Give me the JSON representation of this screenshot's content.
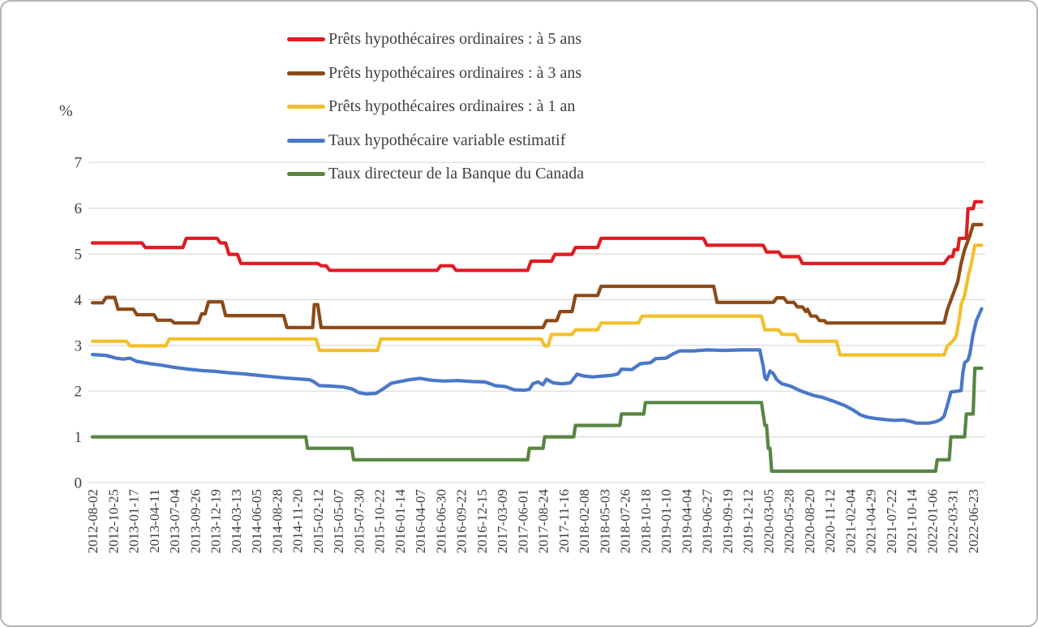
{
  "page": {
    "background": "#ffffff",
    "border_color": "#b6b6b6",
    "text_color": "#404040",
    "grid_color": "#d9d9d9"
  },
  "chart_data": {
    "type": "line",
    "title": "",
    "ylabel": "%",
    "xlabel": "",
    "ylim": [
      0,
      7
    ],
    "yticks": [
      0,
      1,
      2,
      3,
      4,
      5,
      6,
      7
    ],
    "grid": "horizontal",
    "legend_position": "top-center",
    "x_axis": {
      "unit": "weeks since 2012-08-02 (weekly data)",
      "first_tick": "2012-08-02",
      "last_tick": "2022-06-23",
      "tick_spacing_weeks": 12,
      "total_weeks": 521,
      "tick_labels": [
        "2012-08-02",
        "2012-10-25",
        "2013-01-17",
        "2013-04-11",
        "2013-07-04",
        "2013-09-26",
        "2013-12-19",
        "2014-03-13",
        "2014-06-05",
        "2014-08-28",
        "2014-11-20",
        "2015-02-12",
        "2015-05-07",
        "2015-07-30",
        "2015-10-22",
        "2016-01-14",
        "2016-04-07",
        "2016-06-30",
        "2016-09-22",
        "2016-12-15",
        "2017-03-09",
        "2017-06-01",
        "2017-08-24",
        "2017-11-16",
        "2018-02-08",
        "2018-05-03",
        "2018-07-26",
        "2018-10-18",
        "2019-01-10",
        "2019-04-04",
        "2019-06-27",
        "2019-09-19",
        "2019-12-12",
        "2020-03-05",
        "2020-05-28",
        "2020-08-20",
        "2020-11-12",
        "2021-02-04",
        "2021-04-29",
        "2021-07-22",
        "2021-10-14",
        "2022-01-06",
        "2022-03-31",
        "2022-06-23"
      ]
    },
    "series": [
      {
        "name": "Prêts hypothécaires ordinaires : à 5 ans",
        "color": "#e01b22",
        "points": [
          [
            0,
            5.24
          ],
          [
            29,
            5.24
          ],
          [
            31,
            5.14
          ],
          [
            53,
            5.14
          ],
          [
            55,
            5.34
          ],
          [
            73,
            5.34
          ],
          [
            75,
            5.24
          ],
          [
            78,
            5.24
          ],
          [
            80,
            4.99
          ],
          [
            85,
            4.99
          ],
          [
            87,
            4.79
          ],
          [
            132,
            4.79
          ],
          [
            134,
            4.74
          ],
          [
            137,
            4.74
          ],
          [
            139,
            4.64
          ],
          [
            202,
            4.64
          ],
          [
            204,
            4.74
          ],
          [
            211,
            4.74
          ],
          [
            213,
            4.64
          ],
          [
            255,
            4.64
          ],
          [
            257,
            4.84
          ],
          [
            269,
            4.84
          ],
          [
            271,
            4.99
          ],
          [
            281,
            4.99
          ],
          [
            283,
            5.14
          ],
          [
            296,
            5.14
          ],
          [
            298,
            5.34
          ],
          [
            358,
            5.34
          ],
          [
            360,
            5.19
          ],
          [
            393,
            5.19
          ],
          [
            395,
            5.04
          ],
          [
            402,
            5.04
          ],
          [
            404,
            4.94
          ],
          [
            414,
            4.94
          ],
          [
            416,
            4.79
          ],
          [
            499,
            4.79
          ],
          [
            502,
            4.94
          ],
          [
            504,
            4.94
          ],
          [
            505,
            5.09
          ],
          [
            507,
            5.09
          ],
          [
            508,
            5.34
          ],
          [
            512,
            5.34
          ],
          [
            513,
            5.99
          ],
          [
            516,
            5.99
          ],
          [
            517,
            6.14
          ],
          [
            521,
            6.14
          ]
        ]
      },
      {
        "name": "Prêts hypothécaires ordinaires : à 3 ans",
        "color": "#8c4a17",
        "points": [
          [
            0,
            3.93
          ],
          [
            6,
            3.93
          ],
          [
            8,
            4.05
          ],
          [
            13,
            4.05
          ],
          [
            15,
            3.79
          ],
          [
            24,
            3.79
          ],
          [
            26,
            3.67
          ],
          [
            36,
            3.67
          ],
          [
            38,
            3.55
          ],
          [
            46,
            3.55
          ],
          [
            48,
            3.49
          ],
          [
            62,
            3.49
          ],
          [
            64,
            3.69
          ],
          [
            66,
            3.69
          ],
          [
            68,
            3.95
          ],
          [
            76,
            3.95
          ],
          [
            78,
            3.65
          ],
          [
            112,
            3.65
          ],
          [
            114,
            3.39
          ],
          [
            129,
            3.39
          ],
          [
            130,
            3.89
          ],
          [
            132,
            3.89
          ],
          [
            134,
            3.39
          ],
          [
            264,
            3.39
          ],
          [
            266,
            3.54
          ],
          [
            272,
            3.54
          ],
          [
            274,
            3.74
          ],
          [
            281,
            3.74
          ],
          [
            283,
            4.09
          ],
          [
            296,
            4.09
          ],
          [
            298,
            4.29
          ],
          [
            364,
            4.29
          ],
          [
            366,
            3.94
          ],
          [
            399,
            3.94
          ],
          [
            401,
            4.04
          ],
          [
            405,
            4.04
          ],
          [
            407,
            3.94
          ],
          [
            411,
            3.94
          ],
          [
            413,
            3.84
          ],
          [
            416,
            3.84
          ],
          [
            418,
            3.74
          ],
          [
            419,
            3.79
          ],
          [
            421,
            3.64
          ],
          [
            424,
            3.64
          ],
          [
            426,
            3.54
          ],
          [
            429,
            3.54
          ],
          [
            430,
            3.49
          ],
          [
            499,
            3.49
          ],
          [
            501,
            3.79
          ],
          [
            503,
            3.99
          ],
          [
            505,
            4.19
          ],
          [
            507,
            4.39
          ],
          [
            509,
            4.79
          ],
          [
            511,
            5.09
          ],
          [
            514,
            5.39
          ],
          [
            516,
            5.64
          ],
          [
            521,
            5.64
          ]
        ]
      },
      {
        "name": "Prêts hypothécaires ordinaires : à 1 an",
        "color": "#f2c02c",
        "points": [
          [
            0,
            3.09
          ],
          [
            20,
            3.09
          ],
          [
            22,
            2.99
          ],
          [
            43,
            2.99
          ],
          [
            45,
            3.14
          ],
          [
            131,
            3.14
          ],
          [
            133,
            2.89
          ],
          [
            167,
            2.89
          ],
          [
            169,
            3.14
          ],
          [
            263,
            3.14
          ],
          [
            265,
            2.99
          ],
          [
            267,
            2.99
          ],
          [
            269,
            3.24
          ],
          [
            281,
            3.24
          ],
          [
            283,
            3.34
          ],
          [
            296,
            3.34
          ],
          [
            298,
            3.49
          ],
          [
            320,
            3.49
          ],
          [
            322,
            3.64
          ],
          [
            392,
            3.64
          ],
          [
            394,
            3.34
          ],
          [
            402,
            3.34
          ],
          [
            404,
            3.24
          ],
          [
            412,
            3.24
          ],
          [
            414,
            3.09
          ],
          [
            436,
            3.09
          ],
          [
            438,
            2.79
          ],
          [
            499,
            2.79
          ],
          [
            501,
            2.99
          ],
          [
            504,
            3.09
          ],
          [
            506,
            3.19
          ],
          [
            508,
            3.59
          ],
          [
            509,
            3.89
          ],
          [
            511,
            4.09
          ],
          [
            513,
            4.49
          ],
          [
            515,
            4.79
          ],
          [
            517,
            5.19
          ],
          [
            521,
            5.19
          ]
        ]
      },
      {
        "name": "Taux hypothécaire variable estimatif",
        "color": "#4a78c8",
        "points": [
          [
            0,
            2.8
          ],
          [
            8,
            2.78
          ],
          [
            14,
            2.72
          ],
          [
            18,
            2.7
          ],
          [
            22,
            2.72
          ],
          [
            26,
            2.65
          ],
          [
            34,
            2.6
          ],
          [
            40,
            2.57
          ],
          [
            48,
            2.52
          ],
          [
            56,
            2.48
          ],
          [
            64,
            2.45
          ],
          [
            72,
            2.43
          ],
          [
            80,
            2.4
          ],
          [
            88,
            2.38
          ],
          [
            96,
            2.35
          ],
          [
            104,
            2.32
          ],
          [
            112,
            2.29
          ],
          [
            120,
            2.27
          ],
          [
            127,
            2.25
          ],
          [
            129,
            2.22
          ],
          [
            133,
            2.12
          ],
          [
            140,
            2.11
          ],
          [
            147,
            2.09
          ],
          [
            152,
            2.05
          ],
          [
            156,
            1.97
          ],
          [
            160,
            1.94
          ],
          [
            166,
            1.95
          ],
          [
            170,
            2.04
          ],
          [
            175,
            2.17
          ],
          [
            180,
            2.21
          ],
          [
            186,
            2.25
          ],
          [
            192,
            2.28
          ],
          [
            198,
            2.24
          ],
          [
            206,
            2.22
          ],
          [
            214,
            2.23
          ],
          [
            222,
            2.21
          ],
          [
            230,
            2.2
          ],
          [
            236,
            2.12
          ],
          [
            242,
            2.1
          ],
          [
            247,
            2.03
          ],
          [
            253,
            2.02
          ],
          [
            256,
            2.04
          ],
          [
            258,
            2.16
          ],
          [
            261,
            2.2
          ],
          [
            264,
            2.14
          ],
          [
            266,
            2.26
          ],
          [
            270,
            2.18
          ],
          [
            275,
            2.16
          ],
          [
            280,
            2.18
          ],
          [
            284,
            2.37
          ],
          [
            288,
            2.33
          ],
          [
            293,
            2.31
          ],
          [
            299,
            2.33
          ],
          [
            305,
            2.35
          ],
          [
            308,
            2.38
          ],
          [
            310,
            2.48
          ],
          [
            316,
            2.47
          ],
          [
            321,
            2.6
          ],
          [
            327,
            2.62
          ],
          [
            330,
            2.71
          ],
          [
            336,
            2.72
          ],
          [
            340,
            2.81
          ],
          [
            344,
            2.88
          ],
          [
            352,
            2.88
          ],
          [
            360,
            2.9
          ],
          [
            370,
            2.89
          ],
          [
            380,
            2.9
          ],
          [
            391,
            2.9
          ],
          [
            393,
            2.55
          ],
          [
            394,
            2.3
          ],
          [
            395,
            2.25
          ],
          [
            397,
            2.44
          ],
          [
            399,
            2.38
          ],
          [
            401,
            2.25
          ],
          [
            404,
            2.16
          ],
          [
            409,
            2.11
          ],
          [
            414,
            2.02
          ],
          [
            419,
            1.95
          ],
          [
            423,
            1.9
          ],
          [
            428,
            1.86
          ],
          [
            435,
            1.77
          ],
          [
            441,
            1.68
          ],
          [
            446,
            1.58
          ],
          [
            450,
            1.48
          ],
          [
            454,
            1.43
          ],
          [
            459,
            1.4
          ],
          [
            464,
            1.38
          ],
          [
            470,
            1.36
          ],
          [
            475,
            1.37
          ],
          [
            479,
            1.34
          ],
          [
            483,
            1.3
          ],
          [
            490,
            1.3
          ],
          [
            494,
            1.33
          ],
          [
            497,
            1.38
          ],
          [
            499,
            1.45
          ],
          [
            501,
            1.7
          ],
          [
            503,
            1.98
          ],
          [
            509,
            2.01
          ],
          [
            510,
            2.4
          ],
          [
            511,
            2.62
          ],
          [
            513,
            2.68
          ],
          [
            514,
            2.8
          ],
          [
            516,
            3.25
          ],
          [
            518,
            3.55
          ],
          [
            521,
            3.8
          ]
        ]
      },
      {
        "name": "Taux directeur de la Banque du Canada",
        "color": "#588540",
        "points": [
          [
            0,
            1.0
          ],
          [
            125,
            1.0
          ],
          [
            126,
            0.75
          ],
          [
            152,
            0.75
          ],
          [
            153,
            0.5
          ],
          [
            255,
            0.5
          ],
          [
            256,
            0.75
          ],
          [
            264,
            0.75
          ],
          [
            265,
            1.0
          ],
          [
            282,
            1.0
          ],
          [
            283,
            1.25
          ],
          [
            309,
            1.25
          ],
          [
            310,
            1.5
          ],
          [
            323,
            1.5
          ],
          [
            324,
            1.75
          ],
          [
            392,
            1.75
          ],
          [
            394,
            1.25
          ],
          [
            395,
            1.25
          ],
          [
            396,
            0.75
          ],
          [
            397,
            0.75
          ],
          [
            398,
            0.25
          ],
          [
            494,
            0.25
          ],
          [
            495,
            0.5
          ],
          [
            502,
            0.5
          ],
          [
            503,
            1.0
          ],
          [
            511,
            1.0
          ],
          [
            512,
            1.5
          ],
          [
            516,
            1.5
          ],
          [
            517,
            2.5
          ],
          [
            521,
            2.5
          ]
        ]
      }
    ]
  }
}
